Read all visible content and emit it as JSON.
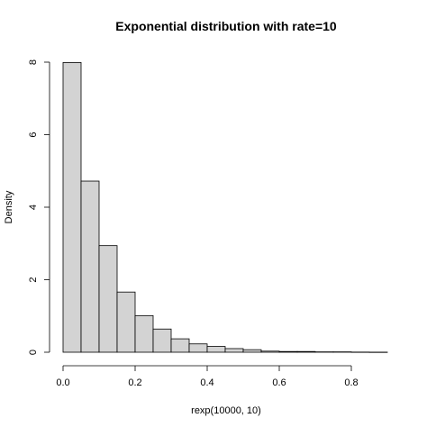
{
  "chart_data": {
    "type": "bar",
    "title": "Exponential distribution with rate=10",
    "xlabel": "rexp(10000, 10)",
    "ylabel": "Density",
    "bin_width": 0.05,
    "bin_starts": [
      0.0,
      0.05,
      0.1,
      0.15,
      0.2,
      0.25,
      0.3,
      0.35,
      0.4,
      0.45,
      0.5,
      0.55,
      0.6,
      0.65,
      0.7,
      0.75,
      0.8,
      0.85
    ],
    "values": [
      7.99,
      4.72,
      2.94,
      1.66,
      1.01,
      0.64,
      0.37,
      0.23,
      0.16,
      0.1,
      0.07,
      0.03,
      0.02,
      0.02,
      0.01,
      0.01,
      0.004,
      0.002
    ],
    "xlim": [
      0.0,
      0.9
    ],
    "ylim": [
      0,
      8
    ],
    "x_ticks": [
      0.0,
      0.2,
      0.4,
      0.6,
      0.8
    ],
    "x_tick_labels": [
      "0.0",
      "0.2",
      "0.4",
      "0.6",
      "0.8"
    ],
    "y_ticks": [
      0,
      2,
      4,
      6,
      8
    ],
    "y_tick_labels": [
      "0",
      "2",
      "4",
      "6",
      "8"
    ],
    "grid": false,
    "bar_fill": "#d3d3d3",
    "bar_stroke": "#000000"
  }
}
